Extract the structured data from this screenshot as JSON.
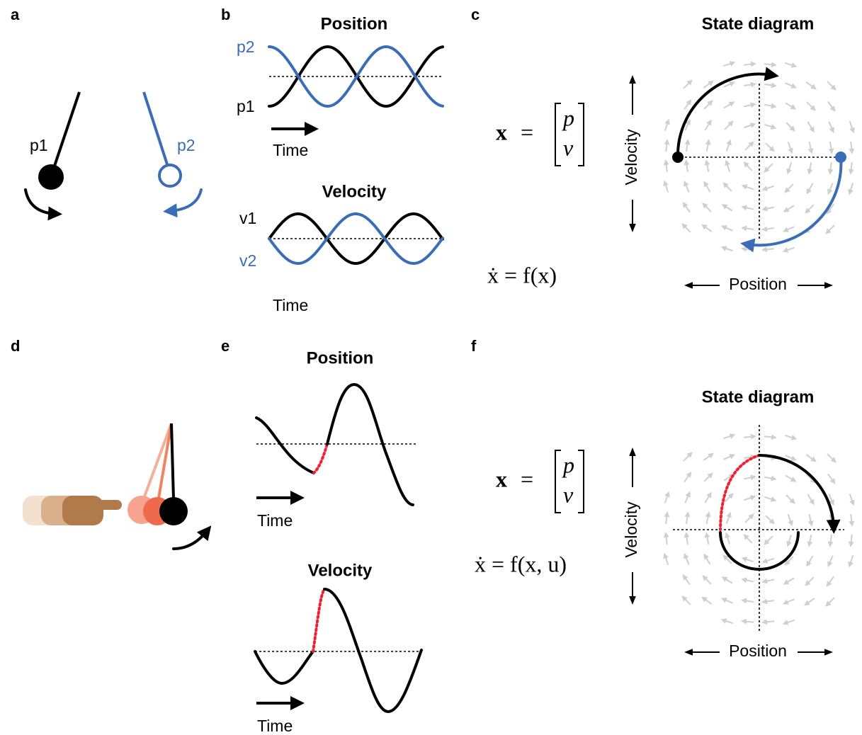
{
  "panels": {
    "a": {
      "label": "a",
      "p1": "p1",
      "p2": "p2"
    },
    "b": {
      "label": "b",
      "position_title": "Position",
      "p2": "p2",
      "p1": "p1",
      "time_1": "Time",
      "velocity_title": "Velocity",
      "v1": "v1",
      "v2": "v2",
      "time_2": "Time"
    },
    "c": {
      "label": "c",
      "vector": "x",
      "equals": "=",
      "top": "p",
      "bottom": "v",
      "dynamics": "ẋ = f(x)",
      "title": "State diagram",
      "y_axis": "Velocity",
      "x_axis": "Position"
    },
    "d": {
      "label": "d"
    },
    "e": {
      "label": "e",
      "position_title": "Position",
      "time_1": "Time",
      "velocity_title": "Velocity",
      "time_2": "Time"
    },
    "f": {
      "label": "f",
      "vector": "x",
      "equals": "=",
      "top": "p",
      "bottom": "v",
      "dynamics": "ẋ = f(x, u)",
      "title": "State diagram",
      "y_axis": "Velocity",
      "x_axis": "Position"
    }
  }
}
